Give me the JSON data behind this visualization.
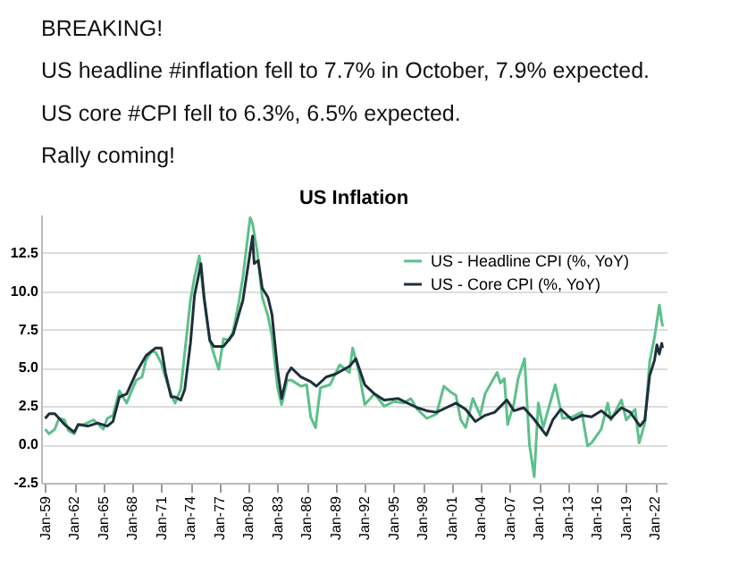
{
  "chart_data": {
    "type": "line",
    "title": "US Inflation",
    "annotations": [
      "BREAKING!",
      "US headline #inflation fell to 7.7% in October, 7.9% expected.",
      "US core #CPI fell to 6.3%, 6.5% expected.",
      "Rally coming!"
    ],
    "series": [
      {
        "name": "US - Headline CPI (%, YoY)",
        "color": "#5cc08a",
        "x": [
          "1959-01",
          "1959-06",
          "1960-01",
          "1960-06",
          "1961-01",
          "1961-06",
          "1962-01",
          "1962-06",
          "1963-01",
          "1964-01",
          "1965-01",
          "1965-06",
          "1966-01",
          "1966-09",
          "1967-06",
          "1968-01",
          "1968-06",
          "1969-01",
          "1969-06",
          "1970-01",
          "1970-06",
          "1971-01",
          "1971-06",
          "1972-01",
          "1972-06",
          "1973-01",
          "1973-06",
          "1974-01",
          "1974-06",
          "1974-12",
          "1975-06",
          "1976-01",
          "1976-06",
          "1976-12",
          "1977-06",
          "1978-01",
          "1978-06",
          "1979-01",
          "1979-06",
          "1980-03",
          "1980-06",
          "1980-12",
          "1981-06",
          "1982-01",
          "1982-06",
          "1983-01",
          "1983-06",
          "1984-01",
          "1984-06",
          "1985-06",
          "1986-01",
          "1986-06",
          "1986-12",
          "1987-06",
          "1988-06",
          "1989-06",
          "1990-06",
          "1990-10",
          "1991-06",
          "1992-01",
          "1993-01",
          "1994-01",
          "1995-01",
          "1996-01",
          "1996-10",
          "1997-06",
          "1998-06",
          "1999-06",
          "2000-03",
          "2000-12",
          "2001-06",
          "2001-12",
          "2002-06",
          "2003-03",
          "2003-12",
          "2004-06",
          "2005-09",
          "2006-01",
          "2006-06",
          "2006-10",
          "2007-06",
          "2007-11",
          "2008-07",
          "2009-01",
          "2009-07",
          "2009-12",
          "2010-06",
          "2011-09",
          "2012-06",
          "2013-06",
          "2014-06",
          "2015-01",
          "2015-06",
          "2016-06",
          "2017-02",
          "2017-06",
          "2018-07",
          "2019-01",
          "2019-12",
          "2020-05",
          "2020-12",
          "2021-06",
          "2021-12",
          "2022-06",
          "2022-10"
        ],
        "values": [
          1.0,
          0.7,
          1.0,
          1.7,
          1.6,
          0.9,
          0.7,
          1.3,
          1.3,
          1.6,
          1.0,
          1.7,
          1.9,
          3.5,
          2.7,
          3.6,
          4.2,
          4.4,
          5.5,
          6.1,
          6.0,
          5.3,
          4.4,
          3.3,
          2.7,
          3.6,
          6.0,
          9.4,
          10.9,
          12.3,
          9.4,
          6.8,
          5.9,
          4.9,
          6.9,
          6.8,
          7.4,
          9.3,
          10.9,
          14.8,
          14.4,
          12.5,
          9.6,
          8.4,
          7.1,
          3.7,
          2.6,
          4.2,
          4.2,
          3.8,
          3.9,
          1.8,
          1.1,
          3.7,
          3.9,
          5.2,
          4.7,
          6.3,
          4.7,
          2.6,
          3.3,
          2.5,
          2.8,
          2.7,
          3.0,
          2.3,
          1.7,
          2.0,
          3.8,
          3.4,
          3.2,
          1.6,
          1.1,
          3.0,
          1.9,
          3.3,
          4.7,
          4.0,
          4.3,
          1.3,
          2.7,
          4.3,
          5.6,
          0.0,
          -2.1,
          2.7,
          1.1,
          3.9,
          1.7,
          1.8,
          2.1,
          -0.1,
          0.1,
          1.0,
          2.7,
          1.6,
          2.9,
          1.6,
          2.3,
          0.1,
          1.4,
          5.4,
          7.0,
          9.1,
          7.7
        ]
      },
      {
        "name": "US - Core CPI (%, YoY)",
        "color": "#1f2f3a",
        "x": [
          "1959-01",
          "1959-06",
          "1960-01",
          "1961-01",
          "1962-01",
          "1962-06",
          "1963-06",
          "1964-06",
          "1965-06",
          "1966-01",
          "1966-09",
          "1967-06",
          "1968-06",
          "1969-06",
          "1970-06",
          "1971-01",
          "1971-06",
          "1972-01",
          "1972-06",
          "1973-01",
          "1973-06",
          "1974-01",
          "1974-06",
          "1975-02",
          "1975-06",
          "1976-01",
          "1976-06",
          "1977-06",
          "1978-06",
          "1979-01",
          "1979-06",
          "1980-06",
          "1980-08",
          "1981-01",
          "1981-06",
          "1982-01",
          "1982-06",
          "1983-01",
          "1983-06",
          "1984-01",
          "1984-06",
          "1985-06",
          "1986-06",
          "1987-01",
          "1988-01",
          "1989-01",
          "1990-06",
          "1991-02",
          "1992-01",
          "1993-01",
          "1994-01",
          "1995-06",
          "1996-06",
          "1997-06",
          "1998-06",
          "1999-06",
          "2000-06",
          "2001-06",
          "2002-06",
          "2003-06",
          "2004-06",
          "2005-06",
          "2006-09",
          "2007-06",
          "2008-06",
          "2009-06",
          "2010-10",
          "2011-06",
          "2012-04",
          "2013-06",
          "2014-06",
          "2015-06",
          "2016-06",
          "2017-06",
          "2018-07",
          "2019-06",
          "2020-06",
          "2020-12",
          "2021-06",
          "2021-12",
          "2022-03",
          "2022-06",
          "2022-09",
          "2022-10"
        ],
        "values": [
          1.7,
          2.0,
          2.0,
          1.3,
          0.8,
          1.3,
          1.2,
          1.4,
          1.2,
          1.5,
          3.1,
          3.3,
          4.7,
          5.8,
          6.3,
          6.3,
          4.7,
          3.1,
          3.1,
          2.9,
          3.6,
          6.6,
          9.7,
          11.8,
          9.6,
          6.8,
          6.4,
          6.4,
          7.2,
          8.5,
          9.4,
          13.6,
          11.8,
          12.0,
          10.2,
          9.6,
          8.5,
          4.9,
          3.0,
          4.6,
          5.0,
          4.4,
          4.1,
          3.8,
          4.4,
          4.6,
          5.1,
          5.6,
          3.9,
          3.3,
          2.9,
          3.0,
          2.7,
          2.4,
          2.2,
          2.1,
          2.4,
          2.7,
          2.3,
          1.5,
          1.9,
          2.1,
          2.9,
          2.2,
          2.4,
          1.7,
          0.6,
          1.6,
          2.3,
          1.6,
          1.9,
          1.8,
          2.2,
          1.7,
          2.4,
          2.1,
          1.2,
          1.6,
          4.5,
          5.5,
          6.5,
          5.9,
          6.6,
          6.3
        ]
      }
    ],
    "xlim": [
      "1958-08",
      "2023-03"
    ],
    "xticks": [
      {
        "value": "1959-01",
        "label": "Jan-59"
      },
      {
        "value": "1962-01",
        "label": "Jan-62"
      },
      {
        "value": "1965-01",
        "label": "Jan-65"
      },
      {
        "value": "1968-01",
        "label": "Jan-68"
      },
      {
        "value": "1971-01",
        "label": "Jan-71"
      },
      {
        "value": "1974-01",
        "label": "Jan-74"
      },
      {
        "value": "1977-01",
        "label": "Jan-77"
      },
      {
        "value": "1980-01",
        "label": "Jan-80"
      },
      {
        "value": "1983-01",
        "label": "Jan-83"
      },
      {
        "value": "1986-01",
        "label": "Jan-86"
      },
      {
        "value": "1989-01",
        "label": "Jan-89"
      },
      {
        "value": "1992-01",
        "label": "Jan-92"
      },
      {
        "value": "1995-01",
        "label": "Jan-95"
      },
      {
        "value": "1998-01",
        "label": "Jan-98"
      },
      {
        "value": "2001-01",
        "label": "Jan-01"
      },
      {
        "value": "2004-01",
        "label": "Jan-04"
      },
      {
        "value": "2007-01",
        "label": "Jan-07"
      },
      {
        "value": "2010-01",
        "label": "Jan-10"
      },
      {
        "value": "2013-01",
        "label": "Jan-13"
      },
      {
        "value": "2016-01",
        "label": "Jan-16"
      },
      {
        "value": "2019-01",
        "label": "Jan-19"
      },
      {
        "value": "2022-01",
        "label": "Jan-22"
      }
    ],
    "ylim": [
      -2.5,
      15
    ],
    "yticks": [
      {
        "value": -2.5,
        "label": "-2.5"
      },
      {
        "value": 0,
        "label": "0.0"
      },
      {
        "value": 2.5,
        "label": "2.5"
      },
      {
        "value": 5,
        "label": "5.0"
      },
      {
        "value": 7.5,
        "label": "7.5"
      },
      {
        "value": 10,
        "label": "10.0"
      },
      {
        "value": 12.5,
        "label": "12.5"
      }
    ],
    "grid": "y",
    "legend": "top right",
    "line_style": "solid",
    "marker": "none"
  }
}
